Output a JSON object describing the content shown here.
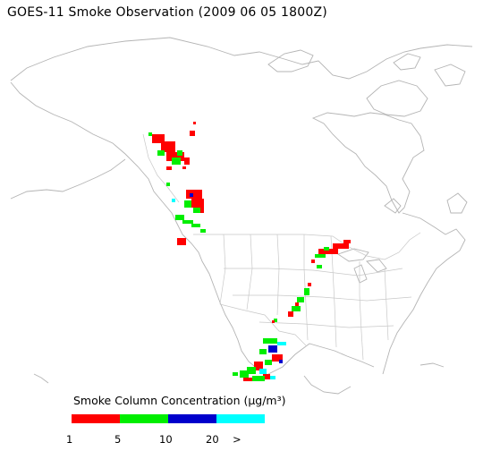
{
  "title": "GOES-11 Smoke Observation (2009 06 05  1800Z)",
  "legend": {
    "title": "Smoke Column Concentration (µg/m³)",
    "bins": [
      {
        "color": "#ff0000",
        "from": "1",
        "to": "5"
      },
      {
        "color": "#00ee00",
        "from": "5",
        "to": "10"
      },
      {
        "color": "#0000cc",
        "from": "10",
        "to": "20"
      },
      {
        "color": "#00ffff",
        "from": "20",
        "to": ">"
      }
    ],
    "ticks": [
      "1",
      "5",
      "10",
      "20",
      ">"
    ]
  },
  "colors": {
    "coastline": "#b4b4b4",
    "borders": "#c8c8c8"
  }
}
